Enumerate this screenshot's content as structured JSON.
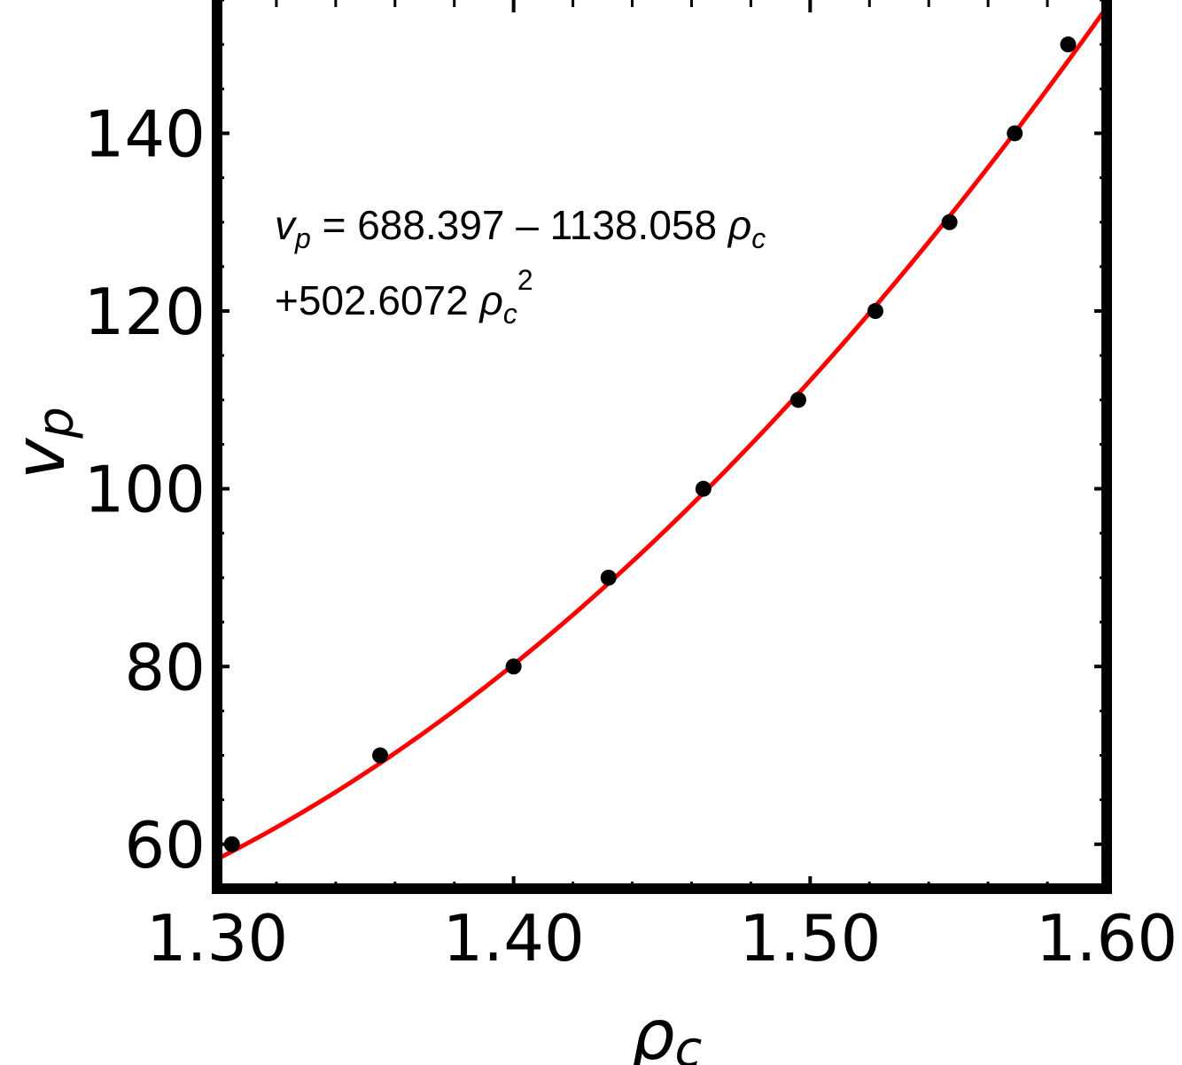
{
  "chart_data": {
    "type": "scatter",
    "xlabel": "ρ",
    "xlabel_sub": "c",
    "ylabel": "v",
    "ylabel_sub": "p",
    "xlim": [
      1.3,
      1.6
    ],
    "ylim": [
      55,
      155
    ],
    "x_ticks": [
      "1.30",
      "1.40",
      "1.50",
      "1.60"
    ],
    "x_tick_values": [
      1.3,
      1.4,
      1.5,
      1.6
    ],
    "y_ticks": [
      "60",
      "80",
      "100",
      "120",
      "140"
    ],
    "y_tick_values": [
      60,
      80,
      100,
      120,
      140
    ],
    "grid": false,
    "points": [
      {
        "x": 1.305,
        "y": 60
      },
      {
        "x": 1.355,
        "y": 70
      },
      {
        "x": 1.4,
        "y": 80
      },
      {
        "x": 1.432,
        "y": 90
      },
      {
        "x": 1.464,
        "y": 100
      },
      {
        "x": 1.496,
        "y": 110
      },
      {
        "x": 1.522,
        "y": 120
      },
      {
        "x": 1.547,
        "y": 130
      },
      {
        "x": 1.569,
        "y": 140
      },
      {
        "x": 1.587,
        "y": 150
      }
    ],
    "fit": {
      "coefficients": [
        688.397,
        -1138.058,
        502.6072
      ],
      "color": "#ff0000"
    },
    "point_color": "#000000",
    "annotation": {
      "line1_lhs_var": "v",
      "line1_lhs_sub": "p",
      "line1_rhs": " = 688.397 – 1138.058 ",
      "line1_rho": "ρ",
      "line1_rho_sub": "c",
      "line2_prefix": "+502.6072 ",
      "line2_rho": "ρ",
      "line2_rho_sub": "c",
      "line2_sup": "2"
    }
  }
}
